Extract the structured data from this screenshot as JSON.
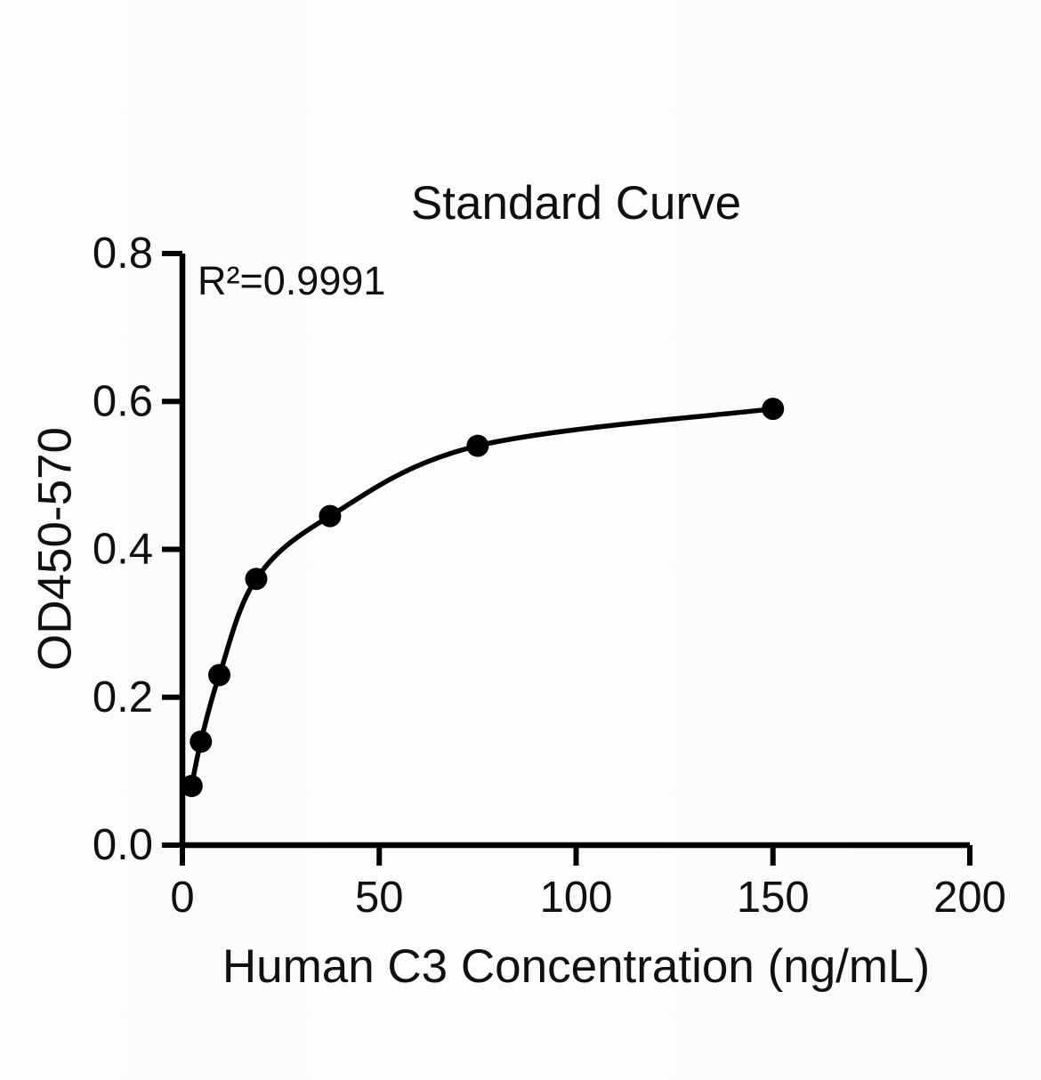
{
  "chart_data": {
    "type": "scatter",
    "title": "Standard Curve",
    "annotation": "R²=0.9991",
    "xlabel": "Human C3 Concentration (ng/mL)",
    "ylabel": "OD450-570",
    "xlim": [
      0,
      200
    ],
    "ylim": [
      0,
      0.8
    ],
    "x_ticks": [
      0,
      50,
      100,
      150,
      200
    ],
    "x_tick_labels": [
      "0",
      "50",
      "100",
      "150",
      "200"
    ],
    "y_ticks": [
      0,
      0.2,
      0.4,
      0.6,
      0.8
    ],
    "y_tick_labels": [
      "0.0",
      "0.2",
      "0.4",
      "0.6",
      "0.8"
    ],
    "grid": false,
    "legend_position": "none",
    "line_style": "smooth-fit",
    "colors": {
      "curve": "#000000",
      "marker": "#000000",
      "axis": "#000000",
      "text": "#101010"
    },
    "series": [
      {
        "points": [
          {
            "x": 2.34,
            "y": 0.08
          },
          {
            "x": 4.69,
            "y": 0.14
          },
          {
            "x": 9.38,
            "y": 0.23
          },
          {
            "x": 18.75,
            "y": 0.36
          },
          {
            "x": 37.5,
            "y": 0.445
          },
          {
            "x": 75,
            "y": 0.54
          },
          {
            "x": 150,
            "y": 0.59
          }
        ]
      }
    ]
  }
}
